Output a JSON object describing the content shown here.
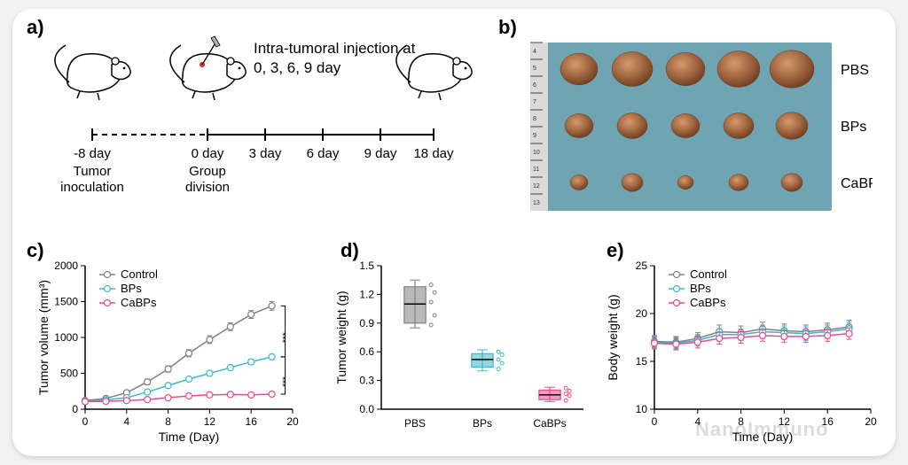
{
  "labels": {
    "a": "a)",
    "b": "b)",
    "c": "c)",
    "d": "d)",
    "e": "e)"
  },
  "panel_a": {
    "caption_top": "Intra-tumoral injection at",
    "caption_days": "0, 3, 6, 9 day",
    "timeline": {
      "points_labels": [
        "-8 day",
        "0 day",
        "3 day",
        "6 day",
        "9 day",
        "18 day"
      ],
      "sub_labels": [
        "Tumor",
        "inoculation",
        "Group",
        "division"
      ]
    }
  },
  "panel_b": {
    "rows": [
      "PBS",
      "BPs",
      "CaBPs"
    ],
    "cols": 5,
    "bg_color": "#6fa5b3",
    "ruler_color": "#dadada",
    "tumor_color": "#a8643a",
    "tumor_dark": "#6e3b1e",
    "row_radii": [
      [
        21,
        23,
        22,
        24,
        25
      ],
      [
        16,
        17,
        16,
        17,
        18
      ],
      [
        10,
        12,
        9,
        11,
        12
      ]
    ]
  },
  "chart_c": {
    "type": "line",
    "xlabel": "Time (Day)",
    "ylabel": "Tumor volume (mm³)",
    "xlim": [
      0,
      20
    ],
    "xtick_step": 4,
    "ylim": [
      0,
      2000
    ],
    "ytick_step": 500,
    "bg": "#ffffff",
    "colors": {
      "Control": "#808080",
      "BPs": "#3fb6cc",
      "CaBPs": "#e84a8a"
    },
    "legend": [
      "Control",
      "BPs",
      "CaBPs"
    ],
    "x": [
      0,
      2,
      4,
      6,
      8,
      10,
      12,
      14,
      16,
      18
    ],
    "series": {
      "Control": {
        "y": [
          120,
          150,
          230,
          380,
          560,
          780,
          970,
          1150,
          1320,
          1440
        ],
        "err": [
          20,
          25,
          30,
          40,
          45,
          50,
          55,
          55,
          55,
          60
        ]
      },
      "BPs": {
        "y": [
          110,
          130,
          160,
          240,
          330,
          420,
          500,
          580,
          660,
          730
        ],
        "err": [
          18,
          20,
          22,
          25,
          28,
          30,
          32,
          34,
          36,
          38
        ]
      },
      "CaBPs": {
        "y": [
          105,
          110,
          120,
          135,
          160,
          185,
          200,
          205,
          200,
          210
        ],
        "err": [
          15,
          15,
          16,
          18,
          18,
          20,
          20,
          20,
          20,
          22
        ]
      }
    },
    "sig_marks": [
      "***",
      "***"
    ],
    "marker_r": 3.5
  },
  "chart_d": {
    "type": "boxplot",
    "xlabel_cats": [
      "PBS",
      "BPs",
      "CaBPs"
    ],
    "ylabel": "Tumor weight (g)",
    "ylim": [
      0,
      1.5
    ],
    "ytick_step": 0.3,
    "bg": "#ffffff",
    "colors": {
      "PBS": "#808080",
      "BPs": "#3fb6cc",
      "CaBPs": "#e84a8a"
    },
    "boxes": {
      "PBS": {
        "q1": 0.9,
        "med": 1.1,
        "q3": 1.28,
        "lo": 0.85,
        "hi": 1.35,
        "pts": [
          0.88,
          0.98,
          1.12,
          1.22,
          1.3
        ]
      },
      "BPs": {
        "q1": 0.44,
        "med": 0.52,
        "q3": 0.58,
        "lo": 0.4,
        "hi": 0.62,
        "pts": [
          0.42,
          0.48,
          0.52,
          0.57,
          0.6
        ]
      },
      "CaBPs": {
        "q1": 0.1,
        "med": 0.15,
        "q3": 0.2,
        "lo": 0.08,
        "hi": 0.23,
        "pts": [
          0.09,
          0.14,
          0.16,
          0.19,
          0.22
        ]
      }
    },
    "box_halfwidth": 0.32
  },
  "chart_e": {
    "type": "line",
    "xlabel": "Time (Day)",
    "ylabel": "Body weight (g)",
    "xlim": [
      0,
      20
    ],
    "xtick_step": 4,
    "ylim": [
      10,
      25
    ],
    "ytick_step": 5,
    "bg": "#ffffff",
    "colors": {
      "Control": "#808080",
      "BPs": "#3fb6cc",
      "CaBPs": "#e84a8a"
    },
    "legend": [
      "Control",
      "BPs",
      "CaBPs"
    ],
    "x": [
      0,
      2,
      4,
      6,
      8,
      10,
      12,
      14,
      16,
      18
    ],
    "series": {
      "Control": {
        "y": [
          17.1,
          17.0,
          17.4,
          18.1,
          18.0,
          18.4,
          18.2,
          18.1,
          18.3,
          18.6
        ],
        "err": [
          0.6,
          0.6,
          0.6,
          0.7,
          0.7,
          0.7,
          0.7,
          0.7,
          0.7,
          0.7
        ]
      },
      "BPs": {
        "y": [
          17.0,
          16.9,
          17.2,
          17.8,
          17.8,
          18.1,
          18.0,
          17.9,
          18.1,
          18.4
        ],
        "err": [
          0.6,
          0.6,
          0.6,
          0.6,
          0.6,
          0.7,
          0.7,
          0.7,
          0.7,
          0.7
        ]
      },
      "CaBPs": {
        "y": [
          16.9,
          16.8,
          17.0,
          17.4,
          17.5,
          17.7,
          17.6,
          17.6,
          17.7,
          17.9
        ],
        "err": [
          0.6,
          0.6,
          0.6,
          0.6,
          0.6,
          0.6,
          0.6,
          0.6,
          0.6,
          0.6
        ]
      }
    },
    "marker_r": 3.5
  },
  "watermark": "NanoImmuno"
}
